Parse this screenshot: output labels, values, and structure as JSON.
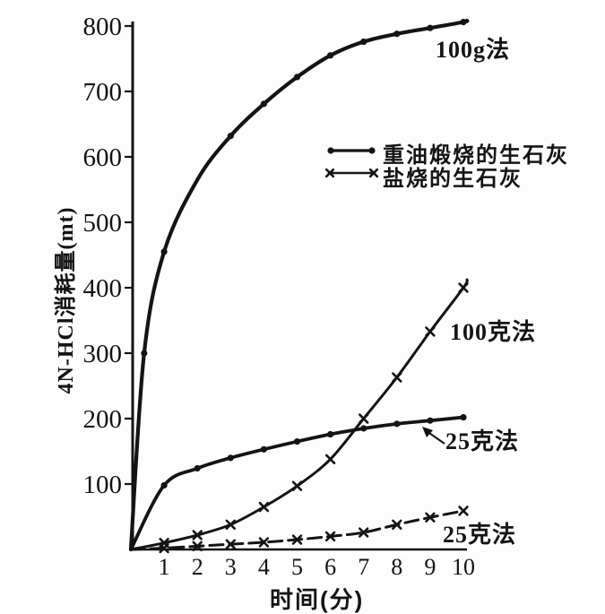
{
  "figure": {
    "background": "#fdfdfd",
    "ink": "#141414"
  },
  "chart_data": {
    "type": "line",
    "title": "",
    "xlabel": "时间(分)",
    "ylabel": "4N-HCl消耗量(mt)",
    "xlim": [
      0,
      10.3
    ],
    "ylim": [
      0,
      810
    ],
    "x_ticks": [
      "1",
      "2",
      "3",
      "4",
      "5",
      "6",
      "7",
      "8",
      "9",
      "10"
    ],
    "y_ticks": [
      "100",
      "200",
      "300",
      "400",
      "500",
      "600",
      "700",
      "800"
    ],
    "grid": false,
    "legend": {
      "position": "inside-upper-right",
      "entries": [
        {
          "label": "重油煅烧的生石灰",
          "marker": "dot",
          "line": "solid"
        },
        {
          "label": "盐烧的生石灰",
          "marker": "x",
          "line": "solid"
        }
      ]
    },
    "series": [
      {
        "name": "重油煅烧的生石灰 100g法",
        "curve_label": "100g法",
        "marker": "dot",
        "line": "solid",
        "x": [
          0,
          0.4,
          1,
          2,
          3,
          4,
          5,
          6,
          7,
          8,
          9,
          10
        ],
        "y": [
          0,
          300,
          455,
          565,
          632,
          681,
          722,
          755,
          776,
          788,
          797,
          806
        ],
        "marker_x": [
          0.4,
          1,
          3,
          4,
          5,
          6,
          7,
          8,
          9,
          10
        ]
      },
      {
        "name": "重油煅烧的生石灰 25克法",
        "curve_label": "25克法",
        "marker": "dot",
        "line": "solid",
        "x": [
          0,
          1,
          2,
          3,
          4,
          5,
          6,
          7,
          8,
          9,
          10
        ],
        "y": [
          0,
          98,
          124,
          140,
          153,
          165,
          176,
          185,
          192,
          197,
          202
        ]
      },
      {
        "name": "盐烧的生石灰 100克法",
        "curve_label": "100克法",
        "marker": "x",
        "line": "solid",
        "x": [
          0,
          1,
          2,
          3,
          4,
          5,
          6,
          7,
          8,
          9,
          10
        ],
        "y": [
          0,
          10,
          22,
          38,
          65,
          97,
          138,
          200,
          263,
          333,
          400
        ]
      },
      {
        "name": "盐烧的生石灰 25克法",
        "curve_label": "25克法",
        "marker": "x",
        "line": "dashed",
        "x": [
          0,
          1,
          2,
          3,
          4,
          5,
          6,
          7,
          8,
          9,
          10
        ],
        "y": [
          0,
          2,
          5,
          8,
          11,
          15,
          20,
          26,
          38,
          49,
          59
        ]
      }
    ]
  }
}
